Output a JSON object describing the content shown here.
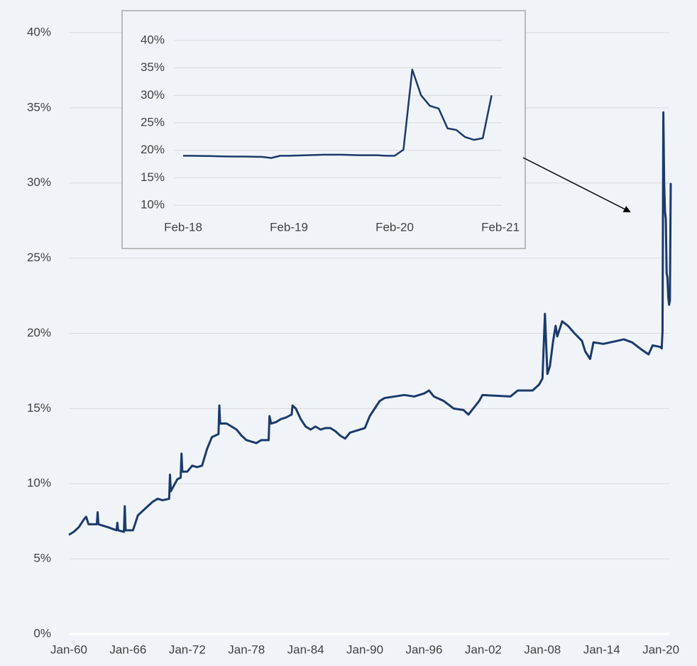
{
  "chart_data": [
    {
      "type": "line",
      "x": [
        "Jan-60",
        "Jul-60",
        "Jan-61",
        "Jul-61",
        "Oct-61",
        "Jan-62",
        "Jul-62",
        "Nov-62",
        "Dec-62",
        "Jan-63",
        "Jul-63",
        "Jan-64",
        "Nov-64",
        "Dec-64",
        "Jan-65",
        "Aug-65",
        "Sep-65",
        "Oct-65",
        "Jul-66",
        "Jan-67",
        "Jul-67",
        "Jan-68",
        "Jul-68",
        "Jan-69",
        "Jul-69",
        "Mar-70",
        "Apr-70",
        "May-70",
        "Jan-71",
        "May-71",
        "Jun-71",
        "Jul-71",
        "Jan-72",
        "Jul-72",
        "Jan-73",
        "Jul-73",
        "Jan-74",
        "Jul-74",
        "Mar-75",
        "Apr-75",
        "May-75",
        "Jan-76",
        "Jul-76",
        "Jan-77",
        "Jul-77",
        "Jan-78",
        "Jul-78",
        "Jan-79",
        "Jul-79",
        "Apr-80",
        "May-80",
        "Jul-80",
        "Jan-81",
        "Jul-81",
        "Jan-82",
        "Aug-82",
        "Sep-82",
        "Jan-83",
        "Jul-83",
        "Jan-84",
        "Jul-84",
        "Jan-85",
        "Jul-85",
        "Jan-86",
        "Jul-86",
        "Jan-87",
        "Jul-87",
        "Jan-88",
        "Jul-88",
        "Jan-89",
        "Jan-90",
        "Jul-90",
        "Jan-91",
        "Jul-91",
        "Jan-92",
        "Jan-93",
        "Jan-94",
        "Jan-95",
        "Jan-96",
        "Jul-96",
        "Jan-97",
        "Jan-98",
        "Jan-99",
        "Jan-00",
        "Jul-00",
        "Aug-01",
        "Dec-01",
        "Oct-04",
        "Jul-05",
        "Jan-07",
        "Sep-07",
        "Jan-08",
        "Apr-08",
        "Jul-08",
        "Oct-08",
        "Feb-09",
        "May-09",
        "Jul-09",
        "Jan-10",
        "Aug-10",
        "Apr-11",
        "Jan-12",
        "May-12",
        "Nov-12",
        "Mar-13",
        "Mar-14",
        "Aug-15",
        "Apr-16",
        "Feb-17",
        "Feb-18",
        "Oct-18",
        "Mar-19",
        "Dec-19",
        "Feb-20",
        "Mar-20",
        "Apr-20",
        "May-20",
        "Jun-20",
        "Jul-20",
        "Aug-20",
        "Sep-20",
        "Oct-20",
        "Nov-20",
        "Dec-20",
        "Jan-21"
      ],
      "series": [
        {
          "color": "#1b3a6b",
          "values": [
            6.6,
            6.8,
            7.1,
            7.6,
            7.8,
            7.3,
            7.3,
            7.3,
            8.1,
            7.3,
            7.2,
            7.1,
            6.9,
            7.4,
            6.9,
            6.8,
            8.5,
            6.9,
            6.9,
            7.9,
            8.2,
            8.5,
            8.8,
            9.0,
            8.9,
            9.0,
            10.6,
            9.5,
            10.3,
            10.4,
            12.0,
            10.8,
            10.8,
            11.2,
            11.1,
            11.2,
            12.3,
            13.1,
            13.3,
            15.2,
            14.0,
            14.0,
            13.8,
            13.6,
            13.2,
            12.9,
            12.8,
            12.7,
            12.9,
            12.9,
            14.5,
            14.0,
            14.1,
            14.3,
            14.4,
            14.6,
            15.2,
            15.0,
            14.3,
            13.8,
            13.6,
            13.8,
            13.6,
            13.7,
            13.7,
            13.5,
            13.2,
            13.0,
            13.4,
            13.5,
            13.7,
            14.5,
            15.0,
            15.5,
            15.7,
            15.8,
            15.9,
            15.8,
            16.0,
            16.2,
            15.8,
            15.5,
            15.0,
            14.9,
            14.6,
            15.5,
            15.9,
            15.8,
            16.2,
            16.2,
            16.6,
            17.0,
            21.3,
            17.3,
            17.8,
            19.5,
            20.5,
            19.8,
            20.8,
            20.5,
            20.0,
            19.5,
            18.8,
            18.3,
            19.4,
            19.3,
            19.5,
            19.6,
            19.4,
            18.9,
            18.6,
            19.2,
            19.1,
            19.0,
            20.1,
            34.7,
            30.0,
            28.1,
            27.6,
            24.0,
            23.7,
            22.4,
            21.9,
            22.2,
            30.0
          ]
        }
      ],
      "xlim": [
        "Jan-60",
        "Jan-21"
      ],
      "xticks": [
        "Jan-60",
        "Jan-66",
        "Jan-72",
        "Jan-78",
        "Jan-84",
        "Jan-90",
        "Jan-96",
        "Jan-02",
        "Jan-08",
        "Jan-14",
        "Jan-20"
      ],
      "ylim": [
        0,
        40
      ],
      "yticks": [
        {
          "value": 0,
          "label": "0%"
        },
        {
          "value": 5,
          "label": "5%"
        },
        {
          "value": 10,
          "label": "10%"
        },
        {
          "value": 15,
          "label": "15%"
        },
        {
          "value": 20,
          "label": "20%"
        },
        {
          "value": 25,
          "label": "25%"
        },
        {
          "value": 30,
          "label": "30%"
        },
        {
          "value": 35,
          "label": "35%"
        },
        {
          "value": 40,
          "label": "40%"
        }
      ],
      "grid": true
    },
    {
      "type": "line",
      "x": [
        "Feb-18",
        "Mar-18",
        "Apr-18",
        "May-18",
        "Jun-18",
        "Jul-18",
        "Aug-18",
        "Sep-18",
        "Oct-18",
        "Nov-18",
        "Dec-18",
        "Jan-19",
        "Feb-19",
        "Mar-19",
        "Apr-19",
        "May-19",
        "Jun-19",
        "Jul-19",
        "Aug-19",
        "Sep-19",
        "Oct-19",
        "Nov-19",
        "Dec-19",
        "Jan-20",
        "Feb-20",
        "Mar-20",
        "Apr-20",
        "May-20",
        "Jun-20",
        "Jul-20",
        "Aug-20",
        "Sep-20",
        "Oct-20",
        "Nov-20",
        "Dec-20",
        "Jan-21"
      ],
      "series": [
        {
          "color": "#1b3a6b",
          "values": [
            19.0,
            19.0,
            18.97,
            18.95,
            18.9,
            18.88,
            18.85,
            18.85,
            18.83,
            18.8,
            18.6,
            19.0,
            19.0,
            19.05,
            19.1,
            19.15,
            19.2,
            19.2,
            19.2,
            19.15,
            19.1,
            19.1,
            19.1,
            19.0,
            19.0,
            20.1,
            34.7,
            30.0,
            28.1,
            27.6,
            24.0,
            23.7,
            22.4,
            21.9,
            22.2,
            30.0
          ]
        }
      ],
      "xlim": [
        "Feb-18",
        "Feb-21"
      ],
      "xticks": [
        "Feb-18",
        "Feb-19",
        "Feb-20",
        "Feb-21"
      ],
      "ylim": [
        10,
        40
      ],
      "yticks": [
        {
          "value": 10,
          "label": "10%"
        },
        {
          "value": 15,
          "label": "15%"
        },
        {
          "value": 20,
          "label": "20%"
        },
        {
          "value": 25,
          "label": "25%"
        },
        {
          "value": 30,
          "label": "30%"
        },
        {
          "value": 35,
          "label": "35%"
        },
        {
          "value": 40,
          "label": "40%"
        }
      ],
      "grid": true
    }
  ]
}
